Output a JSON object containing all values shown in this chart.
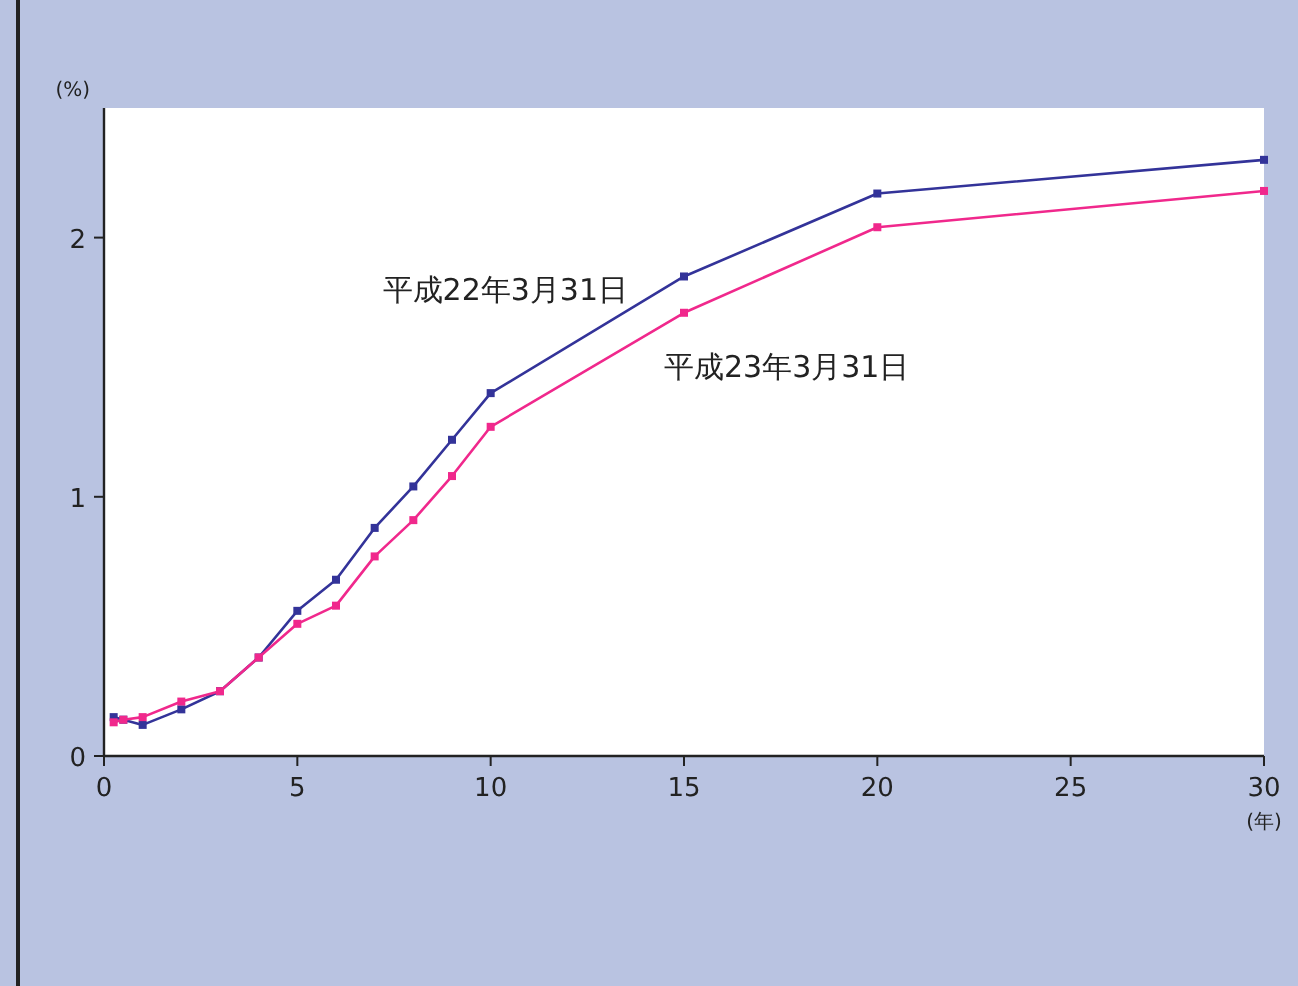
{
  "chart_data": {
    "type": "line",
    "xlabel": "(年)",
    "ylabel": "(%)",
    "x": [
      0.25,
      0.5,
      1,
      2,
      3,
      4,
      5,
      6,
      7,
      8,
      9,
      10,
      15,
      20,
      30
    ],
    "series": [
      {
        "name": "平成22年3月31日",
        "color": "#333399",
        "values": [
          0.15,
          0.14,
          0.12,
          0.18,
          0.25,
          0.38,
          0.56,
          0.68,
          0.88,
          1.04,
          1.22,
          1.4,
          1.85,
          2.17,
          2.3
        ]
      },
      {
        "name": "平成23年3月31日",
        "color": "#f0288c",
        "values": [
          0.13,
          0.14,
          0.15,
          0.21,
          0.25,
          0.38,
          0.51,
          0.58,
          0.77,
          0.91,
          1.08,
          1.27,
          1.71,
          2.04,
          2.18
        ]
      }
    ],
    "xlim": [
      0,
      30
    ],
    "xticks": [
      0,
      5,
      10,
      15,
      20,
      25,
      30
    ],
    "ylim": [
      0,
      2.5
    ],
    "yticks": [
      0,
      1,
      2
    ],
    "grid": false,
    "legend": false,
    "marker": "square",
    "line_style": "solid"
  }
}
